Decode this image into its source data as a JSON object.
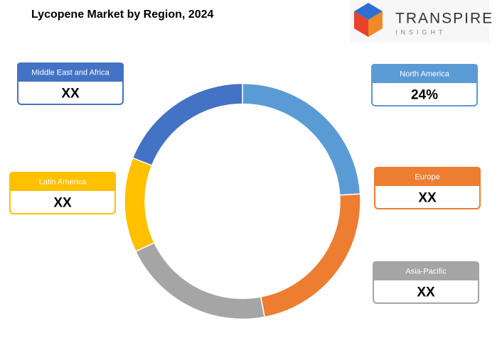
{
  "chart_data": {
    "type": "donut",
    "title": "Lycopene Market by Region, 2024",
    "categories": [
      "North America",
      "Europe",
      "Asia-Pacific",
      "Latin America",
      "Middle East and Africa"
    ],
    "values": [
      24,
      23,
      21,
      13,
      19
    ],
    "value_labels": [
      "24%",
      "XX",
      "XX",
      "XX",
      "XX"
    ],
    "colors": [
      "#5b9bd5",
      "#ed7d31",
      "#a5a5a5",
      "#ffc000",
      "#4472c4"
    ]
  },
  "logo": {
    "name": "TRANSPIRE",
    "tagline": "INSIGHT"
  }
}
